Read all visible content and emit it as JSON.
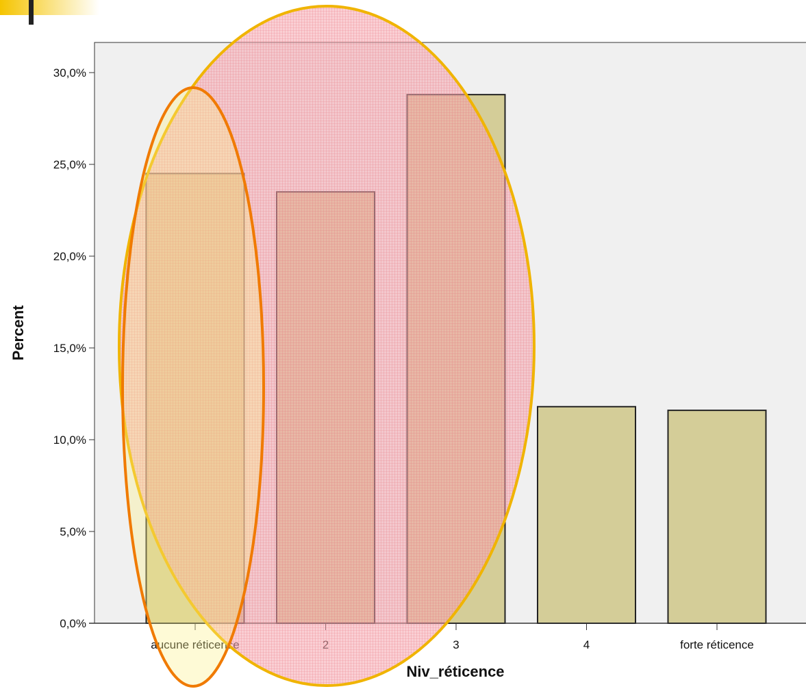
{
  "chart_data": {
    "type": "bar",
    "categories": [
      "aucune réticence",
      "2",
      "3",
      "4",
      "forte réticence"
    ],
    "values": [
      24.5,
      23.5,
      28.8,
      11.8,
      11.6
    ],
    "xlabel": "Niv_réticence",
    "ylabel": "Percent",
    "ylim": [
      0,
      30
    ],
    "yticks": [
      0,
      5,
      10,
      15,
      20,
      25,
      30
    ],
    "ytick_labels": [
      "0,0%",
      "5,0%",
      "10,0%",
      "15,0%",
      "20,0%",
      "25,0%",
      "30,0%"
    ],
    "grid": false,
    "legend": "none"
  },
  "colors": {
    "bar_fill": "#d4cd98",
    "bar_stroke": "#222222",
    "plot_background": "#f0f0f0",
    "highlight_big": "#f0b400",
    "highlight_big_fill": "#f7a3ae",
    "highlight_small": "#f07a00",
    "highlight_small_fill": "#f8f4a0",
    "corner_accent": "#f5c400"
  }
}
